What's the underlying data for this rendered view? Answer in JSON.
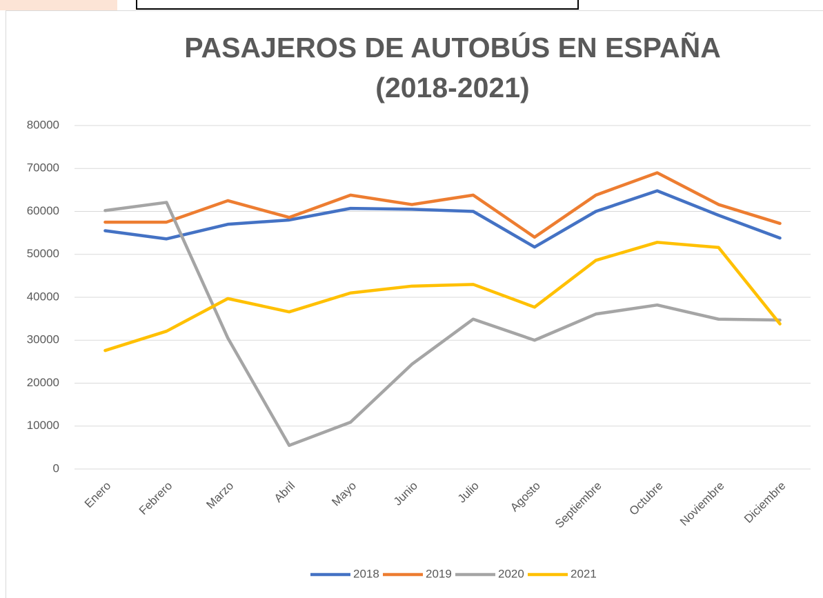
{
  "chart_data": {
    "type": "line",
    "title": "PASAJEROS DE AUTOBÚS EN ESPAÑA (2018-2021)",
    "categories": [
      "Enero",
      "Febrero",
      "Marzo",
      "Abril",
      "Mayo",
      "Junio",
      "Julio",
      "Agosto",
      "Septiembre",
      "Octubre",
      "Noviembre",
      "Diciembre"
    ],
    "series": [
      {
        "name": "2018",
        "color": "#4472c4",
        "values": [
          55500,
          53600,
          57000,
          58000,
          60700,
          60500,
          60000,
          51700,
          60000,
          64800,
          59100,
          53800
        ]
      },
      {
        "name": "2019",
        "color": "#ed7d31",
        "values": [
          57500,
          57500,
          62500,
          58600,
          63800,
          61600,
          63800,
          54000,
          63800,
          69000,
          61600,
          57200
        ]
      },
      {
        "name": "2020",
        "color": "#a5a5a5",
        "values": [
          60200,
          62100,
          30500,
          5500,
          10900,
          24400,
          34900,
          30000,
          36100,
          38200,
          34900,
          34700
        ]
      },
      {
        "name": "2021",
        "color": "#ffc000",
        "values": [
          27600,
          32100,
          39700,
          36600,
          41000,
          42600,
          43000,
          37700,
          48600,
          52800,
          51600,
          33800
        ]
      }
    ],
    "ylim": [
      0,
      80000
    ],
    "yticks": [
      0,
      10000,
      20000,
      30000,
      40000,
      50000,
      60000,
      70000,
      80000
    ],
    "grid": true,
    "legend": "bottom"
  }
}
